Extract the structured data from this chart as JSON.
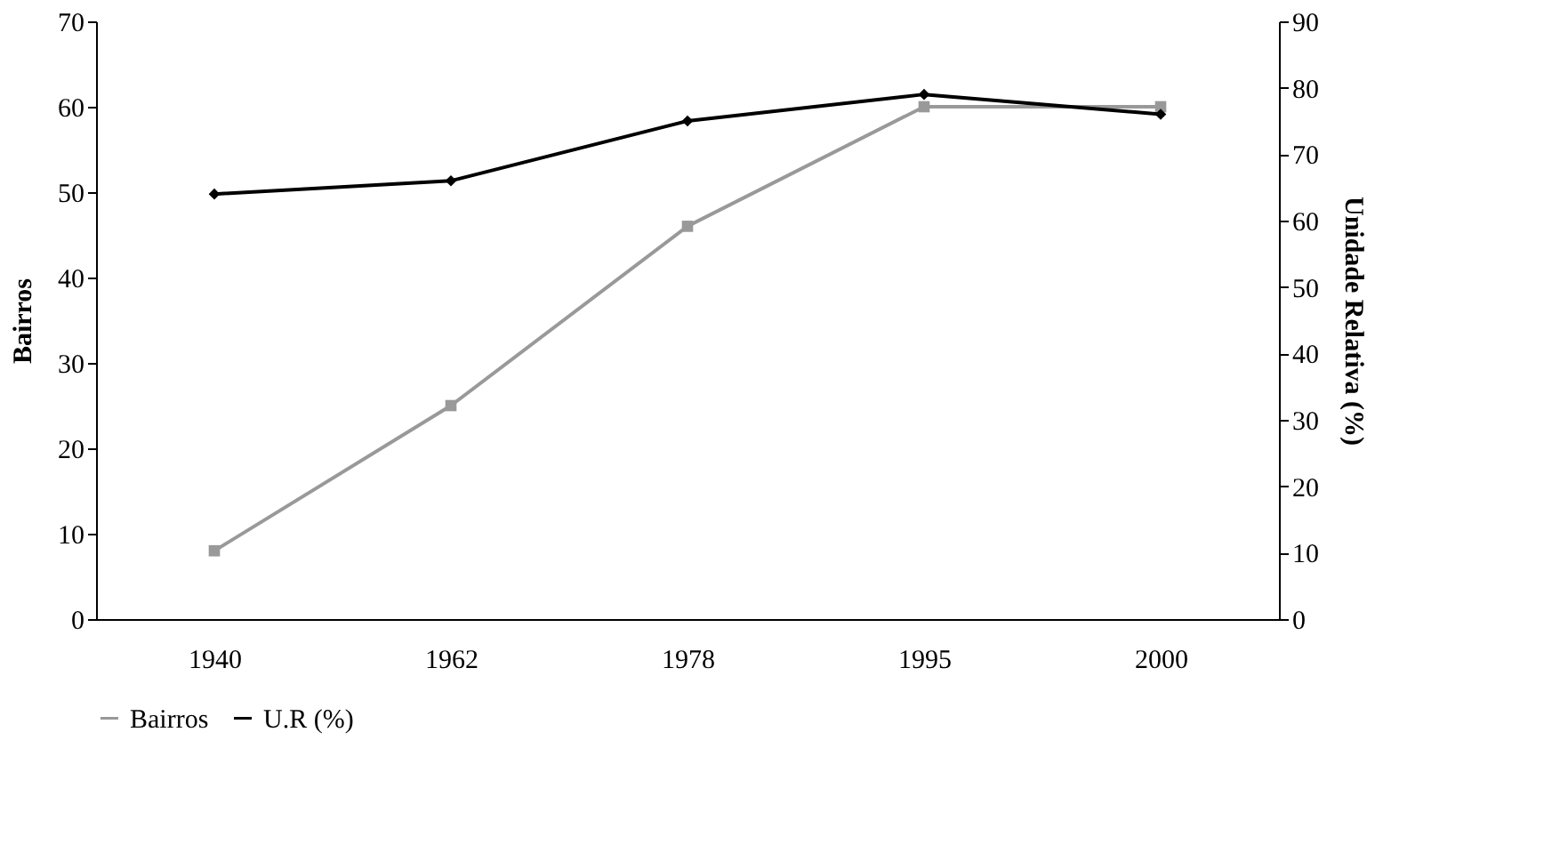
{
  "chart_data": {
    "type": "line",
    "categories": [
      "1940",
      "1962",
      "1978",
      "1995",
      "2000"
    ],
    "ylabel": "Bairros",
    "y2label": "Unidade Relativa   (%)",
    "ylim": [
      0,
      70
    ],
    "yticks": [
      0,
      10,
      20,
      30,
      40,
      50,
      60,
      70
    ],
    "y2lim": [
      0,
      90
    ],
    "y2ticks": [
      0,
      10,
      20,
      30,
      40,
      50,
      60,
      70,
      80,
      90
    ],
    "grid": false,
    "legend": "bottom",
    "series": [
      {
        "name": "Bairros",
        "color": "#999999",
        "marker": "square",
        "values": [
          8,
          25,
          46,
          60,
          60
        ]
      },
      {
        "name": "U.R (%)",
        "color": "#000000",
        "marker": "diamond",
        "axis": "y2",
        "values": [
          64,
          66,
          75,
          79,
          76
        ]
      }
    ]
  }
}
